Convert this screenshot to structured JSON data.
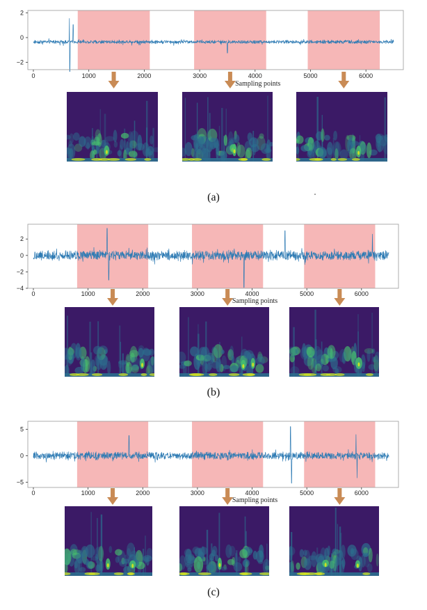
{
  "colors": {
    "signal": "#2e7bb4",
    "window": "#f6b7b7",
    "arrow": "#c98b55",
    "axis": "#333333",
    "spec_bg": "#3b1a66",
    "spec_mid": "#2c6e8e",
    "spec_high": "#47c16e",
    "spec_peak": "#d7e51f"
  },
  "chart_data": [
    {
      "type": "line",
      "caption": "(a)",
      "xlabel": "Sampling points",
      "ylabel": "",
      "xlim": [
        0,
        6600
      ],
      "ylim": [
        -2.6,
        2.2
      ],
      "yticks": [
        -2,
        0,
        2
      ],
      "yticklabels": [
        "−2",
        "0",
        "2"
      ],
      "xticks": [
        0,
        1000,
        2000,
        3000,
        4000,
        5000,
        6000
      ],
      "xticklabels": [
        "0",
        "1000",
        "2000",
        "3000",
        "4000",
        "5000",
        "6000"
      ],
      "highlight_windows": [
        [
          800,
          2100
        ],
        [
          2900,
          4200
        ],
        [
          4950,
          6250
        ]
      ],
      "signal": {
        "n": 6500,
        "amplitude": 0.22,
        "spikes": [
          [
            650,
            1.9
          ],
          [
            660,
            -2.4
          ],
          [
            720,
            1.4
          ],
          [
            3500,
            -0.9
          ]
        ]
      },
      "scalograms": 3
    },
    {
      "type": "line",
      "caption": "(b)",
      "xlabel": "Sampling points",
      "ylabel": "",
      "xlim": [
        0,
        6600
      ],
      "ylim": [
        -4,
        3.8
      ],
      "yticks": [
        -4,
        -2,
        0,
        2
      ],
      "yticklabels": [
        "−4",
        "−2",
        "0",
        "2"
      ],
      "xticks": [
        0,
        1000,
        2000,
        3000,
        4000,
        5000,
        6000
      ],
      "xticklabels": [
        "0",
        "1000",
        "2000",
        "3000",
        "4000",
        "5000",
        "6000"
      ],
      "highlight_windows": [
        [
          800,
          2100
        ],
        [
          2900,
          4200
        ],
        [
          4950,
          6250
        ]
      ],
      "signal": {
        "n": 6500,
        "amplitude": 0.9,
        "spikes": [
          [
            1350,
            3.3
          ],
          [
            1380,
            -3.0
          ],
          [
            3850,
            -3.9
          ],
          [
            4600,
            3.0
          ],
          [
            6200,
            2.6
          ]
        ]
      },
      "scalograms": 3
    },
    {
      "type": "line",
      "caption": "(c)",
      "xlabel": "Sampling points",
      "ylabel": "",
      "xlim": [
        0,
        6600
      ],
      "ylim": [
        -6,
        6.5
      ],
      "yticks": [
        -5,
        0,
        5
      ],
      "yticklabels": [
        "−5",
        "0",
        "5"
      ],
      "xticks": [
        0,
        1000,
        2000,
        3000,
        4000,
        5000,
        6000
      ],
      "xticklabels": [
        "0",
        "1000",
        "2000",
        "3000",
        "4000",
        "5000",
        "6000"
      ],
      "highlight_windows": [
        [
          800,
          2100
        ],
        [
          2900,
          4200
        ],
        [
          4950,
          6250
        ]
      ],
      "signal": {
        "n": 6500,
        "amplitude": 1.1,
        "spikes": [
          [
            1750,
            3.8
          ],
          [
            4700,
            5.5
          ],
          [
            4720,
            -5.2
          ],
          [
            5900,
            4.0
          ],
          [
            5920,
            -4.2
          ]
        ]
      },
      "scalograms": 3
    }
  ]
}
